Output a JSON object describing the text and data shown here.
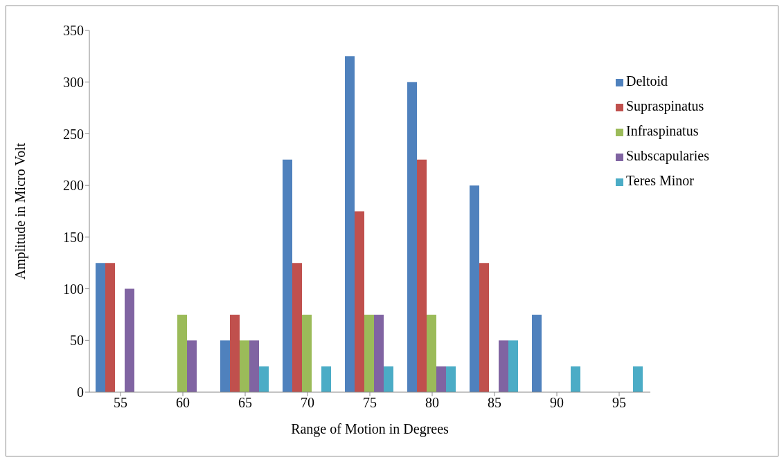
{
  "chart_data": {
    "type": "bar",
    "xlabel": "Range of Motion in Degrees",
    "ylabel": "Amplitude in Micro Volt",
    "categories": [
      "55",
      "60",
      "65",
      "70",
      "75",
      "80",
      "85",
      "90",
      "95"
    ],
    "series": [
      {
        "name": "Deltoid",
        "color": "#4f81bd",
        "values": [
          125,
          0,
          50,
          225,
          325,
          300,
          200,
          75,
          0
        ]
      },
      {
        "name": "Supraspinatus",
        "color": "#c0504d",
        "values": [
          125,
          0,
          75,
          125,
          175,
          225,
          125,
          0,
          0
        ]
      },
      {
        "name": "Infraspinatus",
        "color": "#9bbb59",
        "values": [
          0,
          75,
          50,
          75,
          75,
          75,
          0,
          0,
          0
        ]
      },
      {
        "name": "Subscapularies",
        "color": "#8064a2",
        "values": [
          100,
          50,
          50,
          0,
          75,
          25,
          50,
          0,
          0
        ]
      },
      {
        "name": "Teres Minor",
        "color": "#4bacc6",
        "values": [
          0,
          0,
          25,
          25,
          25,
          25,
          50,
          25,
          25
        ]
      }
    ],
    "ylim": [
      0,
      350
    ],
    "yticks": [
      0,
      50,
      100,
      150,
      200,
      250,
      300,
      350
    ],
    "grid": false,
    "legend": "top right"
  }
}
